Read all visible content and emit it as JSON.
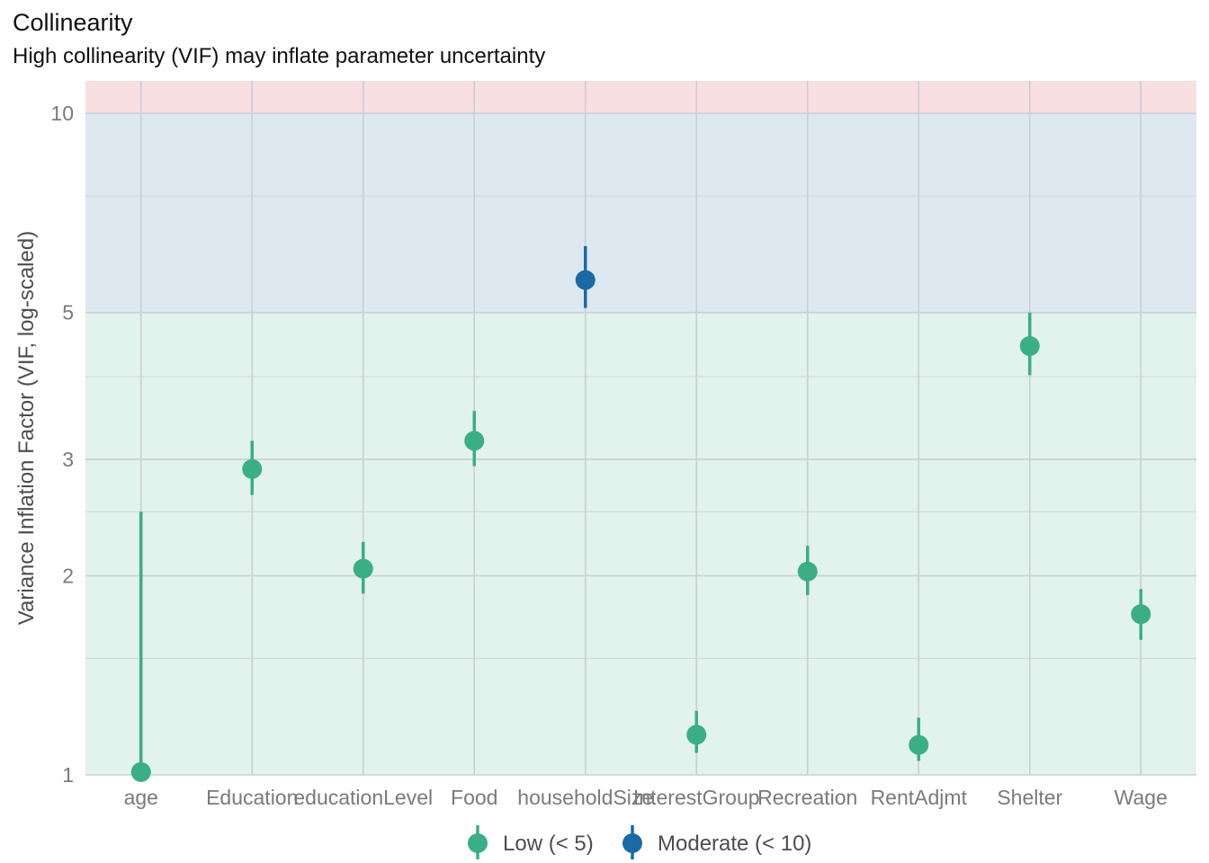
{
  "title": "Collinearity",
  "subtitle": "High collinearity (VIF) may inflate parameter uncertainty",
  "chart_data": {
    "type": "scatter",
    "title": "Collinearity",
    "subtitle": "High collinearity (VIF) may inflate parameter uncertainty",
    "xlabel": "",
    "ylabel": "Variance Inflation Factor (VIF, log-scaled)",
    "y_scale": "log",
    "ylim": [
      1,
      11.2
    ],
    "y_ticks": [
      1,
      2,
      3,
      5,
      10
    ],
    "y_minor_ticks": [
      1.5,
      2.5,
      4,
      7.5
    ],
    "grid": true,
    "legend_position": "bottom",
    "bands": [
      {
        "name": "low",
        "from": 1,
        "to": 5,
        "color": "#e2f2ec"
      },
      {
        "name": "moderate",
        "from": 5,
        "to": 10,
        "color": "#dee8f1"
      },
      {
        "name": "high",
        "from": 10,
        "to": 11.2,
        "color": "#f8dfe0"
      }
    ],
    "categories": [
      "age",
      "Education",
      "educationLevel",
      "Food",
      "householdSize",
      "InterestGroup",
      "Recreation",
      "RentAdjmt",
      "Shelter",
      "Wage"
    ],
    "points": [
      {
        "term": "age",
        "vif": 1.01,
        "ci_low": 1.0,
        "ci_high": 2.5,
        "group": "Low (< 5)"
      },
      {
        "term": "Education",
        "vif": 2.9,
        "ci_low": 2.65,
        "ci_high": 3.2,
        "group": "Low (< 5)"
      },
      {
        "term": "educationLevel",
        "vif": 2.05,
        "ci_low": 1.88,
        "ci_high": 2.25,
        "group": "Low (< 5)"
      },
      {
        "term": "Food",
        "vif": 3.2,
        "ci_low": 2.93,
        "ci_high": 3.55,
        "group": "Low (< 5)"
      },
      {
        "term": "householdSize",
        "vif": 5.6,
        "ci_low": 5.08,
        "ci_high": 6.3,
        "group": "Moderate (< 10)"
      },
      {
        "term": "InterestGroup",
        "vif": 1.15,
        "ci_low": 1.08,
        "ci_high": 1.25,
        "group": "Low (< 5)"
      },
      {
        "term": "Recreation",
        "vif": 2.03,
        "ci_low": 1.87,
        "ci_high": 2.22,
        "group": "Low (< 5)"
      },
      {
        "term": "RentAdjmt",
        "vif": 1.11,
        "ci_low": 1.05,
        "ci_high": 1.22,
        "group": "Low (< 5)"
      },
      {
        "term": "Shelter",
        "vif": 4.45,
        "ci_low": 4.02,
        "ci_high": 5.0,
        "group": "Low (< 5)"
      },
      {
        "term": "Wage",
        "vif": 1.75,
        "ci_low": 1.6,
        "ci_high": 1.91,
        "group": "Low (< 5)"
      }
    ],
    "series": [
      {
        "name": "Low (< 5)",
        "color": "#3aaf85"
      },
      {
        "name": "Moderate (< 10)",
        "color": "#1b6aa5"
      }
    ]
  }
}
